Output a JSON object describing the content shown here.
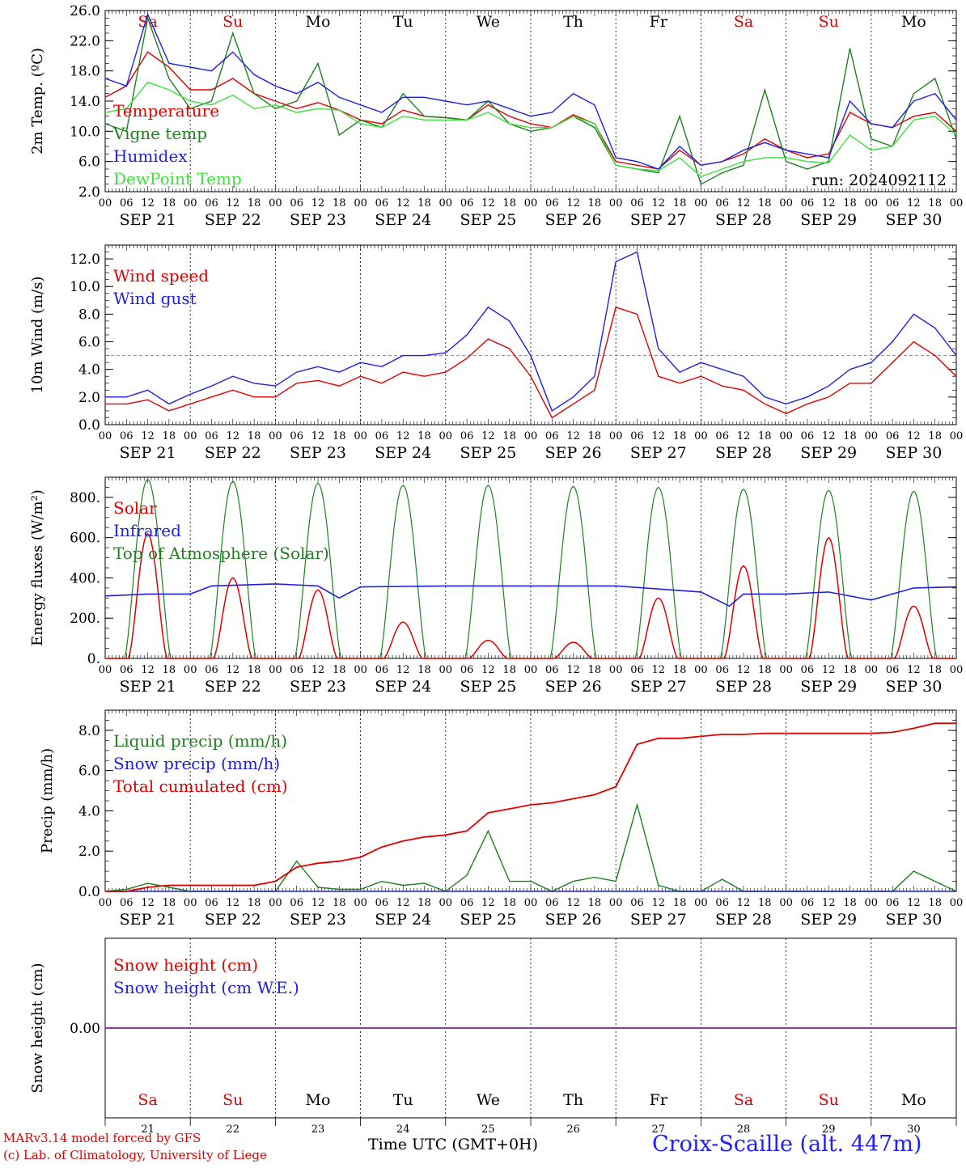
{
  "chart_data": [
    {
      "type": "line",
      "panel": "temperature",
      "ylabel": "2m Temp. (ºC)",
      "ylim": [
        2.0,
        26.0
      ],
      "yticks": [
        "2.0",
        "6.0",
        "10.0",
        "14.0",
        "18.0",
        "22.0",
        "26.0"
      ],
      "run_label": "run: 2024092112",
      "day_labels": [
        "Sa",
        "Su",
        "Mo",
        "Tu",
        "We",
        "Th",
        "Fr",
        "Sa",
        "Su",
        "Mo"
      ],
      "date_labels": [
        "SEP 21",
        "SEP 22",
        "SEP 23",
        "SEP 24",
        "SEP 25",
        "SEP 26",
        "SEP 27",
        "SEP 28",
        "SEP 29",
        "SEP 30"
      ],
      "x_hours": [
        0,
        6,
        12,
        18,
        24,
        30,
        36,
        42,
        48,
        54,
        60,
        66,
        72,
        78,
        84,
        90,
        96,
        102,
        108,
        114,
        120,
        126,
        132,
        138,
        144,
        150,
        156,
        162,
        168,
        174,
        180,
        186,
        192,
        198,
        204,
        210,
        216,
        222,
        228,
        234,
        240
      ],
      "series": [
        {
          "name": "Temperature",
          "color": "#e00000",
          "values": [
            14.5,
            16.0,
            20.5,
            18.5,
            15.5,
            15.5,
            17.0,
            15.0,
            14.0,
            13.0,
            13.8,
            12.8,
            11.5,
            11.0,
            12.8,
            12.0,
            11.8,
            11.5,
            13.5,
            12.0,
            11.0,
            10.5,
            12.2,
            11.0,
            6.0,
            5.5,
            5.0,
            7.5,
            5.5,
            6.0,
            7.0,
            9.0,
            7.5,
            6.5,
            7.0,
            12.5,
            11.0,
            10.5,
            12.0,
            12.5,
            10.0
          ]
        },
        {
          "name": "Vigne temp",
          "color": "#208020",
          "values": [
            11.0,
            10.0,
            25.0,
            17.0,
            13.0,
            14.0,
            23.0,
            15.0,
            13.0,
            14.0,
            19.0,
            9.5,
            11.5,
            10.5,
            15.0,
            12.0,
            11.8,
            11.5,
            14.0,
            11.0,
            10.0,
            10.5,
            12.0,
            10.5,
            5.5,
            5.0,
            4.5,
            12.0,
            3.0,
            4.5,
            5.5,
            15.5,
            6.0,
            5.0,
            6.0,
            21.0,
            9.0,
            8.0,
            15.0,
            17.0,
            9.0
          ]
        },
        {
          "name": "Humidex",
          "color": "#2020e0",
          "values": [
            17.0,
            16.0,
            25.5,
            19.0,
            18.5,
            18.0,
            20.5,
            17.5,
            16.0,
            15.0,
            16.5,
            14.5,
            13.5,
            12.5,
            14.5,
            14.5,
            14.0,
            13.5,
            14.0,
            13.0,
            12.0,
            12.5,
            15.0,
            13.5,
            6.5,
            6.0,
            5.0,
            8.0,
            5.5,
            6.0,
            7.5,
            8.5,
            7.5,
            7.0,
            6.5,
            14.0,
            11.0,
            10.5,
            14.0,
            15.0,
            11.5
          ]
        },
        {
          "name": "DewPoint Temp",
          "color": "#40e040",
          "values": [
            12.5,
            13.0,
            16.5,
            15.5,
            14.0,
            13.5,
            14.8,
            13.0,
            13.5,
            12.5,
            13.0,
            12.8,
            11.0,
            10.5,
            12.0,
            11.5,
            11.5,
            11.5,
            12.5,
            11.0,
            10.5,
            10.5,
            12.0,
            11.0,
            5.5,
            5.0,
            4.8,
            6.5,
            4.0,
            5.0,
            6.0,
            6.5,
            6.5,
            6.0,
            5.8,
            9.5,
            7.5,
            8.0,
            11.5,
            12.0,
            9.5
          ]
        }
      ]
    },
    {
      "type": "line",
      "panel": "wind",
      "ylabel": "10m Wind (m/s)",
      "ylim": [
        0.0,
        13.0
      ],
      "yticks": [
        "0.0",
        "2.0",
        "4.0",
        "6.0",
        "8.0",
        "10.0",
        "12.0"
      ],
      "reference_line": 5.0,
      "date_labels": [
        "SEP 21",
        "SEP 22",
        "SEP 23",
        "SEP 24",
        "SEP 25",
        "SEP 26",
        "SEP 27",
        "SEP 28",
        "SEP 29",
        "SEP 30"
      ],
      "x_hours": [
        0,
        6,
        12,
        18,
        24,
        30,
        36,
        42,
        48,
        54,
        60,
        66,
        72,
        78,
        84,
        90,
        96,
        102,
        108,
        114,
        120,
        126,
        132,
        138,
        144,
        150,
        156,
        162,
        168,
        174,
        180,
        186,
        192,
        198,
        204,
        210,
        216,
        222,
        228,
        234,
        240
      ],
      "series": [
        {
          "name": "Wind speed",
          "color": "#e00000",
          "values": [
            1.5,
            1.5,
            1.8,
            1.0,
            1.5,
            2.0,
            2.5,
            2.0,
            2.0,
            3.0,
            3.2,
            2.8,
            3.5,
            3.0,
            3.8,
            3.5,
            3.8,
            4.8,
            6.2,
            5.5,
            3.5,
            0.5,
            1.5,
            2.5,
            8.5,
            8.0,
            3.5,
            3.0,
            3.5,
            2.8,
            2.5,
            1.5,
            0.8,
            1.5,
            2.0,
            3.0,
            3.0,
            4.5,
            6.0,
            5.0,
            3.5
          ]
        },
        {
          "name": "Wind gust",
          "color": "#2020e0",
          "values": [
            2.0,
            2.0,
            2.5,
            1.5,
            2.2,
            2.8,
            3.5,
            3.0,
            2.8,
            3.8,
            4.2,
            3.8,
            4.5,
            4.2,
            5.0,
            5.0,
            5.2,
            6.5,
            8.5,
            7.5,
            5.0,
            1.0,
            2.0,
            3.5,
            11.8,
            12.5,
            5.5,
            3.8,
            4.5,
            4.0,
            3.5,
            2.0,
            1.5,
            2.0,
            2.8,
            4.0,
            4.5,
            6.0,
            8.0,
            7.0,
            5.0
          ]
        }
      ]
    },
    {
      "type": "line",
      "panel": "energy",
      "ylabel": "Energy fluxes (W/m²)",
      "ylim": [
        0,
        900
      ],
      "yticks": [
        "0.",
        "200.",
        "400.",
        "600.",
        "800."
      ],
      "date_labels": [
        "SEP 21",
        "SEP 22",
        "SEP 23",
        "SEP 24",
        "SEP 25",
        "SEP 26",
        "SEP 27",
        "SEP 28",
        "SEP 29",
        "SEP 30"
      ],
      "solar_peaks": [
        620,
        400,
        340,
        180,
        90,
        80,
        300,
        460,
        600,
        260
      ],
      "toa_peaks": [
        890,
        880,
        870,
        860,
        860,
        855,
        850,
        840,
        835,
        830
      ],
      "infrared": {
        "x_hours": [
          0,
          12,
          24,
          30,
          48,
          60,
          66,
          72,
          96,
          144,
          168,
          176,
          180,
          192,
          204,
          216,
          228,
          240
        ],
        "values": [
          310,
          320,
          320,
          360,
          370,
          360,
          300,
          355,
          360,
          360,
          330,
          260,
          320,
          320,
          330,
          290,
          350,
          355
        ]
      },
      "series": [
        {
          "name": "Solar",
          "color": "#e00000"
        },
        {
          "name": "Infrared",
          "color": "#2020e0"
        },
        {
          "name": "Top of Atmosphere (Solar)",
          "color": "#208020"
        }
      ]
    },
    {
      "type": "line",
      "panel": "precip",
      "ylabel": "Precip (mm/h)",
      "ylim": [
        0.0,
        9.0
      ],
      "yticks": [
        "0.0",
        "2.0",
        "4.0",
        "6.0",
        "8.0"
      ],
      "date_labels": [
        "SEP 21",
        "SEP 22",
        "SEP 23",
        "SEP 24",
        "SEP 25",
        "SEP 26",
        "SEP 27",
        "SEP 28",
        "SEP 29",
        "SEP 30"
      ],
      "x_hours": [
        0,
        6,
        12,
        18,
        24,
        30,
        36,
        42,
        48,
        54,
        60,
        66,
        72,
        78,
        84,
        90,
        96,
        102,
        108,
        114,
        120,
        126,
        132,
        138,
        144,
        150,
        156,
        162,
        168,
        174,
        180,
        186,
        192,
        198,
        204,
        210,
        216,
        222,
        228,
        234,
        240
      ],
      "series": [
        {
          "name": "Liquid precip (mm/h)",
          "color": "#208020",
          "values": [
            0.0,
            0.1,
            0.4,
            0.2,
            0.0,
            0.0,
            0.0,
            0.0,
            0.0,
            1.5,
            0.2,
            0.1,
            0.1,
            0.5,
            0.3,
            0.4,
            0.0,
            0.8,
            3.0,
            0.5,
            0.5,
            0.0,
            0.5,
            0.7,
            0.5,
            4.3,
            0.3,
            0.0,
            0.0,
            0.6,
            0.0,
            0.0,
            0.0,
            0.0,
            0.0,
            0.0,
            0.0,
            0.0,
            1.0,
            0.5,
            0.0
          ]
        },
        {
          "name": "Snow precip (mm/h)",
          "color": "#2020e0",
          "values": [
            0,
            0,
            0,
            0,
            0,
            0,
            0,
            0,
            0,
            0,
            0,
            0,
            0,
            0,
            0,
            0,
            0,
            0,
            0,
            0,
            0,
            0,
            0,
            0,
            0,
            0,
            0,
            0,
            0,
            0,
            0,
            0,
            0,
            0,
            0,
            0,
            0,
            0,
            0,
            0,
            0
          ]
        },
        {
          "name": "Total cumulated (cm)",
          "color": "#e00000",
          "values": [
            0.0,
            0.0,
            0.2,
            0.3,
            0.3,
            0.3,
            0.3,
            0.3,
            0.5,
            1.2,
            1.4,
            1.5,
            1.7,
            2.2,
            2.5,
            2.7,
            2.8,
            3.0,
            3.9,
            4.1,
            4.3,
            4.4,
            4.6,
            4.8,
            5.2,
            7.3,
            7.6,
            7.6,
            7.7,
            7.8,
            7.8,
            7.85,
            7.85,
            7.85,
            7.85,
            7.85,
            7.85,
            7.9,
            8.1,
            8.35,
            8.35
          ]
        }
      ]
    },
    {
      "type": "line",
      "panel": "snow",
      "ylabel": "Snow height (cm)",
      "ylim": [
        -1.0,
        1.0
      ],
      "yticks": [
        "0.00"
      ],
      "day_labels": [
        "Sa",
        "Su",
        "Mo",
        "Tu",
        "We",
        "Th",
        "Fr",
        "Sa",
        "Su",
        "Mo"
      ],
      "day_numbers": [
        "21",
        "22",
        "23",
        "24",
        "25",
        "26",
        "27",
        "28",
        "29",
        "30"
      ],
      "series": [
        {
          "name": "Snow height (cm)",
          "color": "#e00000",
          "values": [
            0.0,
            0.0
          ]
        },
        {
          "name": "Snow height (cm W.E.)",
          "color": "#2020e0",
          "values": [
            0.0,
            0.0
          ]
        }
      ]
    }
  ],
  "x_tick_labels": [
    "00",
    "06",
    "12",
    "18"
  ],
  "x_final_tick": "00",
  "footer": {
    "line1": "MARv3.14 model forced by GFS",
    "line2": "(c) Lab. of Climatology, University of Liege",
    "xlabel": "Time UTC (GMT+0H)",
    "station": "Croix-Scaille (alt. 447m)"
  },
  "colors": {
    "red": "#e00000",
    "green": "#208020",
    "blue": "#2020e0",
    "lime": "#40e040",
    "weekend": "#e00000"
  }
}
